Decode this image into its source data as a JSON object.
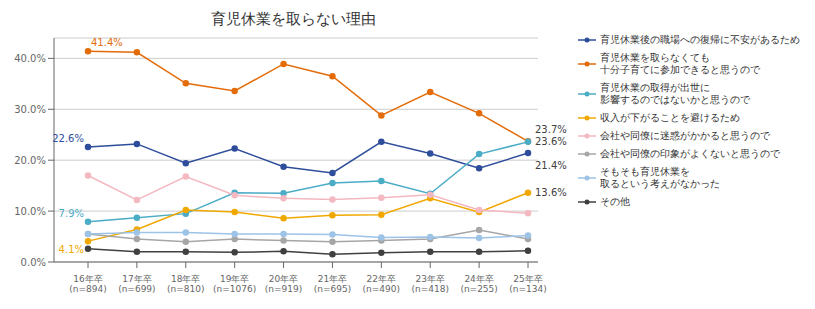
{
  "chart_data": {
    "type": "line",
    "title": "育児休業を取らない理由",
    "categories": [
      "16年卒\n(n=894)",
      "17年卒\n(n=699)",
      "18年卒\n(n=810)",
      "19年卒\n(n=1076)",
      "20年卒\n(n=919)",
      "21年卒\n(n=695)",
      "22年卒\n(n=490)",
      "23年卒\n(n=418)",
      "24年卒\n(n=255)",
      "25年卒\n(n=134)"
    ],
    "series": [
      {
        "name": "育児休業後の職場への復帰に不安があるため",
        "color": "#2e4d9b",
        "marker": "circle",
        "values": [
          22.6,
          23.2,
          19.4,
          22.3,
          18.7,
          17.5,
          23.6,
          21.3,
          18.4,
          21.4
        ]
      },
      {
        "name": "育児休業を取らなくても\n十分子育てに参加できると思うので",
        "color": "#e36c09",
        "marker": "circle",
        "values": [
          41.4,
          41.2,
          35.1,
          33.6,
          38.9,
          36.5,
          28.8,
          33.4,
          29.2,
          23.7
        ]
      },
      {
        "name": "育児休業の取得が出世に\n影響するのではないかと思うので",
        "color": "#4bacc6",
        "marker": "circle",
        "values": [
          7.9,
          8.7,
          9.5,
          13.6,
          13.5,
          15.5,
          15.9,
          13.4,
          21.2,
          23.6
        ]
      },
      {
        "name": "収入が下がることを避けるため",
        "color": "#f0a800",
        "marker": "circle",
        "values": [
          4.1,
          6.4,
          10.2,
          9.8,
          8.6,
          9.2,
          9.3,
          12.5,
          9.8,
          13.6
        ]
      },
      {
        "name": "会社や同僚に迷惑がかかると思うので",
        "color": "#f4b8c1",
        "marker": "circle",
        "values": [
          17.0,
          12.2,
          16.8,
          13.1,
          12.5,
          12.3,
          12.6,
          13.2,
          10.2,
          9.6
        ]
      },
      {
        "name": "会社や同僚の印象がよくないと思うので",
        "color": "#a6a6a6",
        "marker": "circle",
        "values": [
          5.5,
          4.5,
          4.0,
          4.5,
          4.2,
          4.0,
          4.2,
          4.5,
          6.3,
          4.5
        ]
      },
      {
        "name": "そもそも育児休業を\n取るという考えがなかった",
        "color": "#9dc3e6",
        "marker": "circle",
        "values": [
          5.5,
          5.8,
          5.8,
          5.5,
          5.5,
          5.4,
          4.8,
          4.9,
          4.7,
          5.2
        ]
      },
      {
        "name": "その他",
        "color": "#404040",
        "marker": "circle",
        "values": [
          2.6,
          2.0,
          2.0,
          1.9,
          2.1,
          1.5,
          1.8,
          2.0,
          2.0,
          2.2
        ]
      }
    ],
    "annotations": [
      {
        "text": "22.6%",
        "series": "育児休業後の職場への復帰に不安があるため",
        "category": "16年卒\n(n=894)",
        "color": "#2e4d9b"
      },
      {
        "text": "41.4%",
        "series": "育児休業を取らなくても\n十分子育てに参加できると思うので",
        "category": "16年卒\n(n=894)",
        "color": "#e36c09"
      },
      {
        "text": "7.9%",
        "series": "育児休業の取得が出世に\n影響するのではないかと思うので",
        "category": "16年卒\n(n=894)",
        "color": "#4bacc6"
      },
      {
        "text": "4.1%",
        "series": "収入が下がることを避けるため",
        "category": "16年卒\n(n=894)",
        "color": "#f0a800"
      },
      {
        "text": "23.7%",
        "series": "育児休業を取らなくても\n十分子育てに参加できると思うので",
        "category": "25年卒\n(n=134)",
        "color": "#404040"
      },
      {
        "text": "23.6%",
        "series": "育児休業の取得が出世に\n影響するのではないかと思うので",
        "category": "25年卒\n(n=134)",
        "color": "#404040"
      },
      {
        "text": "21.4%",
        "series": "育児休業後の職場への復帰に不安があるため",
        "category": "25年卒\n(n=134)",
        "color": "#404040"
      },
      {
        "text": "13.6%",
        "series": "収入が下がることを避けるため",
        "category": "25年卒\n(n=134)",
        "color": "#404040"
      }
    ],
    "ylim": [
      0,
      44
    ],
    "yticks": [
      {
        "value": 0,
        "label": "0.0%"
      },
      {
        "value": 10,
        "label": "10.0%"
      },
      {
        "value": 20,
        "label": "20.0%"
      },
      {
        "value": 30,
        "label": "30.0%"
      },
      {
        "value": 40,
        "label": "40.0%"
      }
    ],
    "grid": true,
    "legend": "right"
  }
}
